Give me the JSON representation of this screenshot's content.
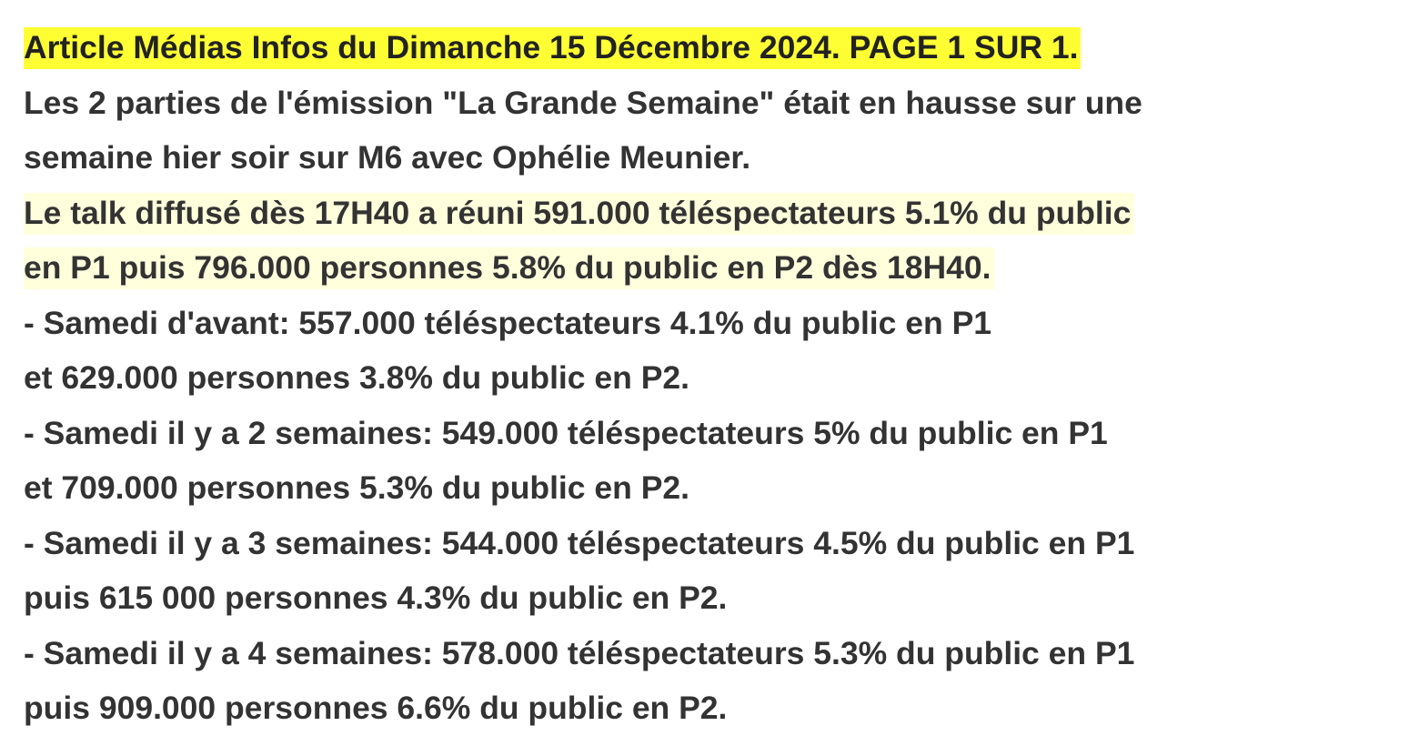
{
  "article": {
    "title": "Article Médias Infos du Dimanche 15 Décembre 2024. PAGE 1 SUR 1.",
    "intro": [
      "Les 2 parties de l'émission \"La Grande Semaine\" était en hausse sur une",
      "semaine hier soir sur M6 avec Ophélie Meunier."
    ],
    "highlight": [
      "Le talk diffusé dès 17H40 a réuni 591.000 téléspectateurs 5.1% du public",
      "en P1 puis 796.000 personnes 5.8% du public en P2 dès 18H40. "
    ],
    "history": [
      {
        "line1": "- Samedi d'avant: 557.000 téléspectateurs 4.1% du public en P1",
        "line2": "et 629.000 personnes 3.8% du public en P2."
      },
      {
        "line1": "- Samedi il y a 2 semaines: 549.000 téléspectateurs 5% du public en P1",
        "line2": "et 709.000 personnes 5.3% du public en P2."
      },
      {
        "line1": "- Samedi il y a 3 semaines: 544.000 téléspectateurs 4.5% du public en P1",
        "line2": "puis 615 000 personnes 4.3% du public en P2."
      },
      {
        "line1": "- Samedi il y a 4 semaines: 578.000 téléspectateurs 5.3% du public en P1",
        "line2": "puis 909.000 personnes 6.6% du public en P2."
      }
    ],
    "colors": {
      "text": "#333333",
      "title_highlight": "#ffff33",
      "paragraph_highlight": "#ffffdc",
      "background": "#ffffff"
    }
  }
}
